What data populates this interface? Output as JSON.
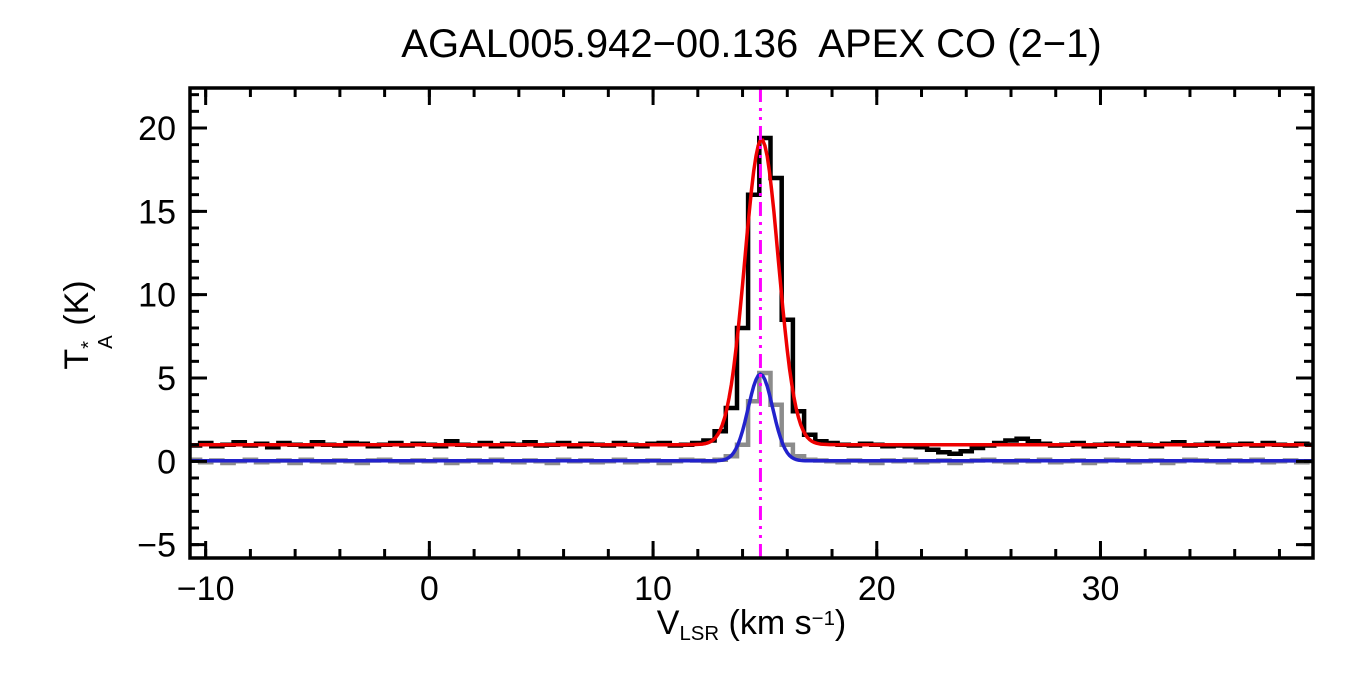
{
  "chart_data": {
    "type": "line",
    "title": "AGAL005.942−00.136  APEX CO (2−1)",
    "xlabel": "V_LSR (km s−1)",
    "ylabel": "T*_A (K)",
    "xlabel_parts": {
      "main": "V",
      "sub": "LSR",
      "unit_prefix": " (km s",
      "unit_sup": "−1",
      "unit_suffix": ")"
    },
    "ylabel_parts": {
      "main": "T",
      "sup": "*",
      "sub": "A",
      "unit": " (K)"
    },
    "xlim": [
      -10.7,
      39.5
    ],
    "ylim": [
      -5.8,
      22.4
    ],
    "xticks": [
      -10,
      0,
      10,
      20,
      30
    ],
    "xtick_labels": [
      "−10",
      "0",
      "10",
      "20",
      "30"
    ],
    "x_minor_step": 2,
    "yticks": [
      -5,
      0,
      5,
      10,
      15,
      20
    ],
    "ytick_labels": [
      "−5",
      "0",
      "5",
      "10",
      "15",
      "20"
    ],
    "y_minor_step": 1,
    "grid": false,
    "legend": "none",
    "background_color": "#ffffff",
    "axis_color": "#000000",
    "vline": {
      "x": 14.8,
      "color": "#ff00ff",
      "style": "dash-dot"
    },
    "series": [
      {
        "id": "gray-spectrum",
        "name": "gray histogram spectrum (baseline ~0 K)",
        "color": "#8c8c8c",
        "line_width": 4.5,
        "x_start": -11,
        "x_step": 0.5,
        "values": [
          0.0,
          0.1,
          -0.05,
          0.05,
          -0.1,
          0.0,
          0.1,
          -0.05,
          0.0,
          0.05,
          -0.1,
          0.1,
          0.0,
          -0.05,
          0.05,
          0.0,
          -0.1,
          0.05,
          0.1,
          0.0,
          -0.05,
          0.05,
          0.0,
          0.1,
          -0.1,
          0.0,
          0.05,
          -0.05,
          0.1,
          0.0,
          -0.05,
          0.05,
          0.0,
          -0.1,
          0.1,
          0.0,
          0.05,
          -0.05,
          0.0,
          0.1,
          -0.05,
          0.0,
          0.05,
          -0.1,
          0.0,
          0.1,
          0.05,
          0.0,
          0.1,
          0.3,
          1.0,
          3.6,
          5.3,
          3.4,
          1.0,
          0.3,
          0.1,
          0.05,
          0.0,
          -0.05,
          0.05,
          0.0,
          -0.1,
          0.05,
          0.0,
          0.1,
          -0.05,
          0.0,
          0.05,
          -0.1,
          0.0,
          0.05,
          0.1,
          0.0,
          -0.05,
          0.05,
          0.0,
          0.1,
          -0.05,
          0.0,
          0.05,
          -0.1,
          0.0,
          0.1,
          0.05,
          -0.05,
          0.0,
          0.05,
          -0.1,
          0.0,
          0.1,
          0.05,
          0.0,
          -0.05,
          0.05,
          0.0,
          0.1,
          -0.05,
          0.0,
          0.05,
          -0.05,
          0.0
        ]
      },
      {
        "id": "black-spectrum",
        "name": "black histogram spectrum (baseline ~1 K, peak ~19.4 K)",
        "color": "#000000",
        "line_width": 4.5,
        "x_start": -11,
        "x_step": 0.5,
        "values": [
          1.05,
          0.95,
          1.1,
          0.9,
          1.0,
          1.15,
          0.95,
          1.05,
          0.85,
          1.1,
          1.0,
          0.9,
          1.15,
          1.0,
          0.95,
          1.1,
          1.05,
          0.9,
          1.0,
          1.1,
          0.95,
          1.05,
          1.0,
          0.9,
          1.2,
          1.0,
          0.95,
          1.1,
          0.9,
          1.05,
          1.0,
          1.15,
          0.95,
          1.0,
          1.1,
          0.9,
          1.05,
          1.0,
          0.95,
          1.1,
          1.0,
          0.9,
          1.05,
          1.1,
          0.95,
          1.0,
          1.1,
          1.25,
          1.8,
          3.2,
          8.0,
          16.0,
          19.4,
          17.0,
          8.5,
          3.0,
          1.6,
          1.2,
          1.1,
          1.0,
          0.95,
          1.05,
          1.0,
          0.9,
          0.95,
          0.9,
          0.85,
          0.7,
          0.55,
          0.45,
          0.6,
          0.8,
          0.95,
          1.1,
          1.25,
          1.35,
          1.2,
          1.05,
          0.95,
          1.0,
          1.1,
          0.9,
          1.0,
          1.05,
          0.95,
          1.1,
          1.0,
          0.9,
          1.05,
          1.15,
          0.95,
          1.0,
          1.1,
          0.9,
          1.0,
          1.05,
          0.95,
          1.1,
          1.0,
          0.95,
          1.05,
          1.0
        ]
      }
    ],
    "fits": [
      {
        "id": "red-gaussian-fit",
        "name": "Gaussian fit to black spectrum",
        "color": "#ee0000",
        "line_width": 3.5,
        "baseline": 1.0,
        "amplitude": 18.3,
        "center": 14.85,
        "sigma": 0.75
      },
      {
        "id": "blue-gaussian-fit",
        "name": "Gaussian fit to gray spectrum",
        "color": "#2222cc",
        "line_width": 3.5,
        "baseline": 0.03,
        "amplitude": 5.2,
        "center": 14.8,
        "sigma": 0.55
      }
    ]
  }
}
